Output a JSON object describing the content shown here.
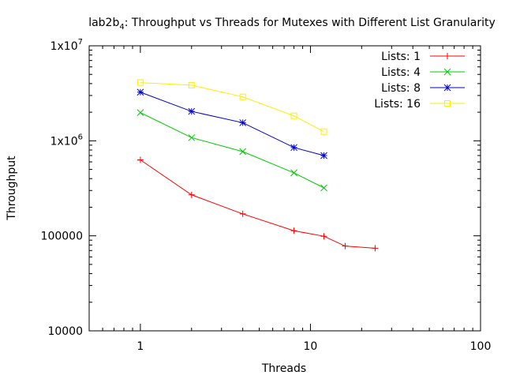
{
  "chart_data": {
    "type": "line",
    "title": "lab2b_4: Throughput vs Threads for Mutexes with Different List Granularity",
    "title_parts": {
      "main": "lab2b",
      "subscript": "4",
      "rest": ": Throughput vs Threads for Mutexes with Different List Granularity"
    },
    "xlabel": "Threads",
    "ylabel": "Throughput",
    "x_scale": "log",
    "y_scale": "log",
    "xlim": [
      0.5,
      100
    ],
    "ylim": [
      10000,
      10000000
    ],
    "x_ticks": [
      {
        "value": 1,
        "label": "1"
      },
      {
        "value": 10,
        "label": "10"
      },
      {
        "value": 100,
        "label": "100"
      }
    ],
    "y_ticks": [
      {
        "value": 10000,
        "label": "10000"
      },
      {
        "value": 100000,
        "label": "100000"
      },
      {
        "value": 1000000,
        "label": "1x10",
        "exp": "6"
      },
      {
        "value": 10000000,
        "label": "1x10",
        "exp": "7"
      }
    ],
    "grid": false,
    "legend_position": "top-right",
    "series": [
      {
        "name": "Lists: 1",
        "color": "#ff0000",
        "marker": "plus",
        "points": [
          {
            "x": 1,
            "y": 630000
          },
          {
            "x": 2,
            "y": 270000
          },
          {
            "x": 4,
            "y": 170000
          },
          {
            "x": 8,
            "y": 113000
          },
          {
            "x": 12,
            "y": 99000
          },
          {
            "x": 16,
            "y": 78000
          },
          {
            "x": 24,
            "y": 74000
          }
        ]
      },
      {
        "name": "Lists: 4",
        "color": "#00cc00",
        "marker": "cross",
        "points": [
          {
            "x": 1,
            "y": 1980000
          },
          {
            "x": 2,
            "y": 1080000
          },
          {
            "x": 4,
            "y": 770000
          },
          {
            "x": 8,
            "y": 460000
          },
          {
            "x": 12,
            "y": 320000
          }
        ]
      },
      {
        "name": "Lists: 8",
        "color": "#0000cc",
        "marker": "star",
        "points": [
          {
            "x": 1,
            "y": 3250000
          },
          {
            "x": 2,
            "y": 2040000
          },
          {
            "x": 4,
            "y": 1550000
          },
          {
            "x": 8,
            "y": 850000
          },
          {
            "x": 12,
            "y": 700000
          }
        ]
      },
      {
        "name": "Lists: 16",
        "color": "#ffee00",
        "marker": "square",
        "points": [
          {
            "x": 1,
            "y": 4100000
          },
          {
            "x": 2,
            "y": 3850000
          },
          {
            "x": 4,
            "y": 2900000
          },
          {
            "x": 8,
            "y": 1830000
          },
          {
            "x": 12,
            "y": 1250000
          }
        ]
      }
    ]
  }
}
